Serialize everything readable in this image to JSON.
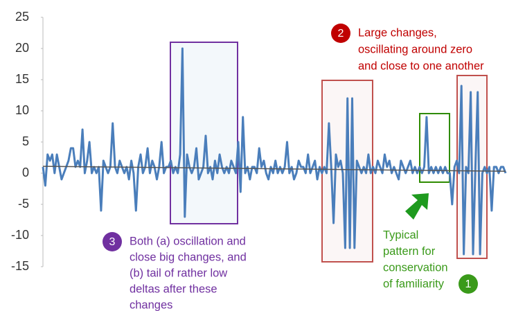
{
  "chart_data": {
    "type": "line",
    "ylim": [
      -15,
      25
    ],
    "yticks": [
      -15,
      -10,
      -5,
      0,
      5,
      10,
      15,
      20,
      25
    ],
    "series": [
      {
        "color": "#4a7ebb",
        "values": [
          1,
          -2,
          3,
          2,
          3,
          0,
          3,
          1,
          -1,
          0,
          1,
          2,
          4,
          4,
          1,
          2,
          1,
          7,
          0,
          2,
          5,
          0,
          1,
          0,
          1,
          -6,
          2,
          1,
          0,
          1,
          8,
          1,
          0,
          2,
          1,
          0,
          1,
          -1,
          2,
          0,
          -6,
          1,
          3,
          0,
          1,
          4,
          0,
          2,
          1,
          -1,
          1,
          5,
          0,
          1,
          1,
          2,
          0,
          1,
          0,
          3,
          20,
          -7,
          3,
          1,
          0,
          1,
          4,
          -1,
          0,
          1,
          6,
          0,
          1,
          -1,
          2,
          0,
          3,
          1,
          0,
          1,
          0,
          2,
          1,
          0,
          5,
          -3,
          9,
          0,
          1,
          -1,
          1,
          1,
          0,
          4,
          1,
          2,
          0,
          -1,
          1,
          0,
          2,
          0,
          1,
          0,
          1,
          5,
          0,
          1,
          -1,
          0,
          2,
          1,
          1,
          0,
          3,
          0,
          1,
          2,
          -1,
          1,
          0,
          1,
          0,
          8,
          1,
          -8,
          3,
          1,
          2,
          0,
          -12,
          12,
          -12,
          12,
          -12,
          2,
          1,
          0,
          1,
          0,
          3,
          0,
          1,
          0,
          2,
          1,
          0,
          3,
          1,
          2,
          0,
          1,
          0,
          -1,
          2,
          1,
          0,
          1,
          2,
          0,
          1,
          0,
          1,
          0,
          1,
          9,
          0,
          1,
          0,
          1,
          0,
          1,
          0,
          1,
          0,
          0,
          -5,
          1,
          2,
          0,
          14,
          -13,
          1,
          0,
          13,
          -13,
          1,
          13,
          -13,
          0,
          1,
          0,
          1,
          -6,
          1,
          1,
          0,
          1,
          1,
          0
        ]
      }
    ],
    "trendline": {
      "color": "#555555",
      "values": [
        1.1,
        0.3
      ]
    },
    "annotations": [
      {
        "number": 2,
        "color": "#c00000",
        "lines": [
          "Large changes,",
          "oscillating around zero",
          "and close to one another"
        ]
      },
      {
        "number": 3,
        "color": "#7030a0",
        "lines": [
          "Both (a) oscillation and",
          "close big changes, and",
          "(b) tail of rather low",
          "deltas after these",
          "changes"
        ]
      },
      {
        "number": 1,
        "color": "#3a9a1a",
        "lines": [
          "Typical",
          "pattern for",
          "conservation",
          "of familiarity"
        ]
      }
    ]
  }
}
